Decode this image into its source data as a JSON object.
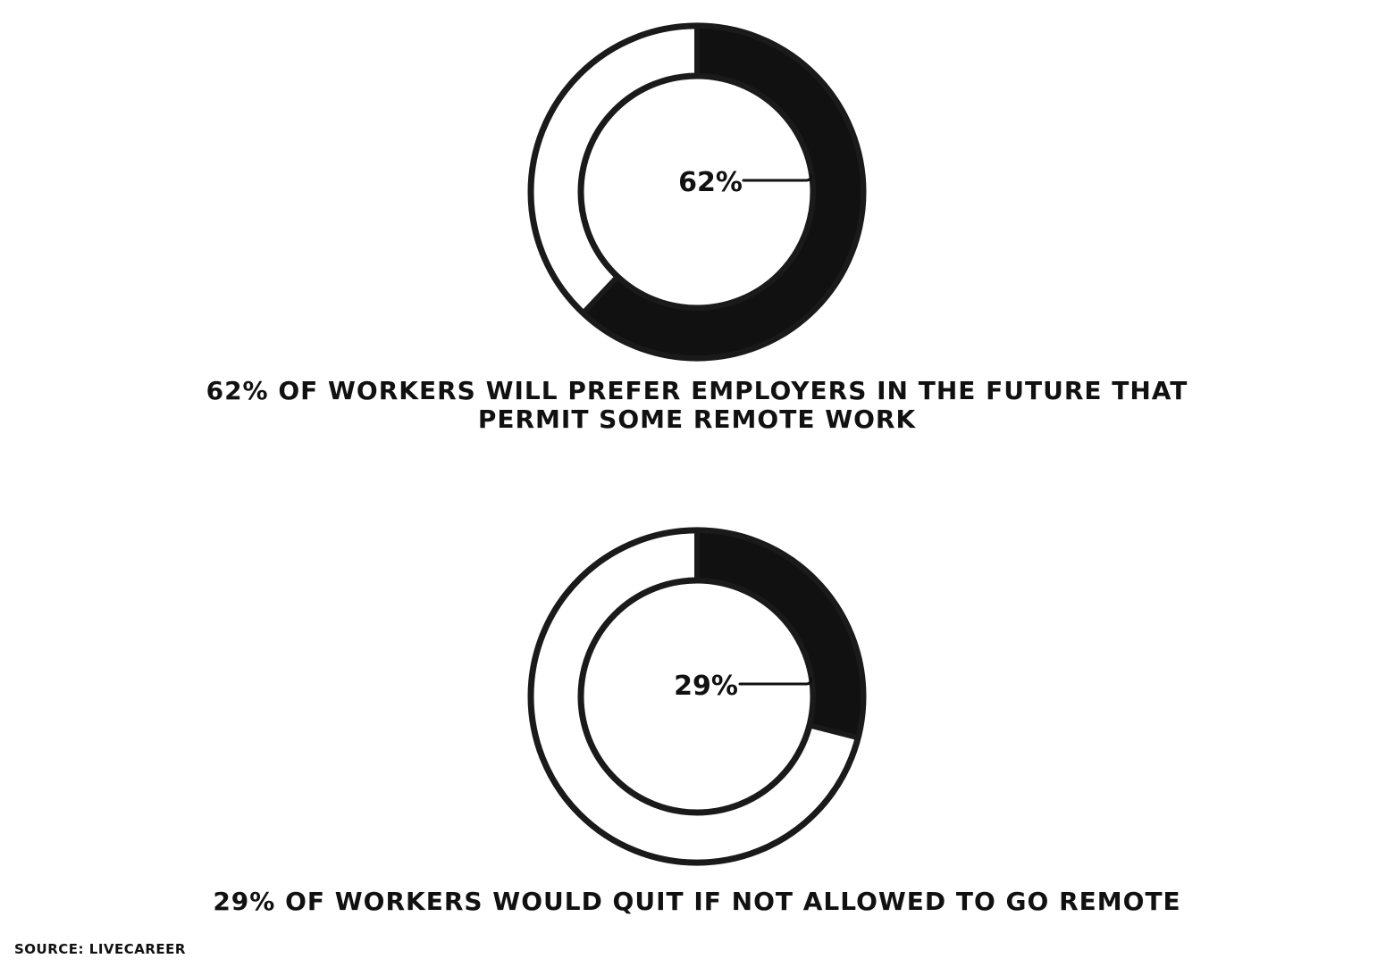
{
  "chart_data": [
    {
      "type": "pie",
      "style": "donut",
      "value": 62,
      "value_label": "62%",
      "caption_lines": [
        "62% OF WORKERS WILL PREFER EMPLOYERS IN THE FUTURE THAT",
        "PERMIT SOME REMOTE WORK"
      ],
      "filled_color": "#111111",
      "empty_color": "#ffffff"
    },
    {
      "type": "pie",
      "style": "donut",
      "value": 29,
      "value_label": "29%",
      "caption_lines": [
        "29% OF WORKERS WOULD QUIT IF NOT ALLOWED TO GO REMOTE"
      ],
      "filled_color": "#111111",
      "empty_color": "#ffffff"
    }
  ],
  "source": "SOURCE: LIVECAREER"
}
